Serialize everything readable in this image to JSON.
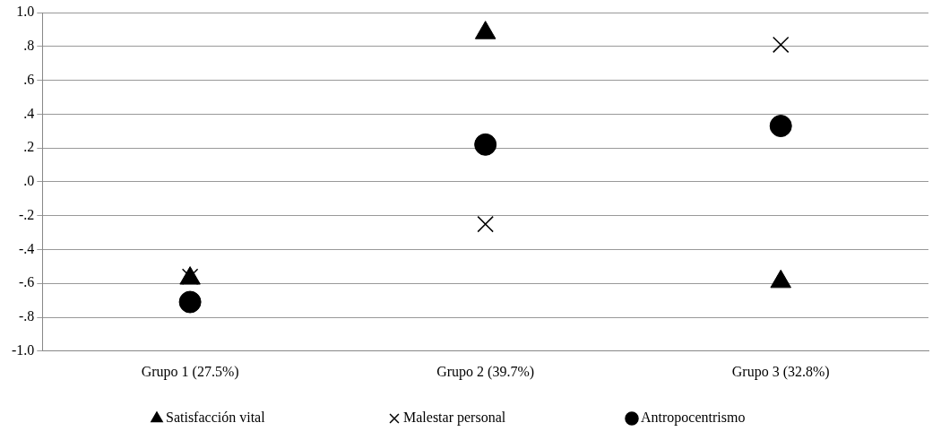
{
  "chart_data": {
    "type": "scatter",
    "categories": [
      "Grupo 1 (27.5%)",
      "Grupo 2 (39.7%)",
      "Grupo 3 (32.8%)"
    ],
    "series": [
      {
        "name": "Satisfacción vital",
        "color": "#000000",
        "marker": "triangle",
        "values": [
          -0.57,
          0.88,
          -0.59
        ]
      },
      {
        "name": "Malestar personal",
        "color": "#000000",
        "marker": "cross",
        "values": [
          -0.56,
          -0.25,
          0.81
        ]
      },
      {
        "name": "Antropocentrismo",
        "color": "#000000",
        "marker": "circle",
        "values": [
          -0.71,
          0.22,
          0.33
        ]
      }
    ],
    "ylim": [
      -1,
      1
    ],
    "yticks": [
      {
        "value": -1,
        "label": "-1.0"
      },
      {
        "value": -0.8,
        "label": "-.8"
      },
      {
        "value": -0.6,
        "label": "-.6"
      },
      {
        "value": -0.4,
        "label": "-.4"
      },
      {
        "value": -0.2,
        "label": "-.2"
      },
      {
        "value": 0,
        "label": ".0"
      },
      {
        "value": 0.2,
        "label": ".2"
      },
      {
        "value": 0.4,
        "label": ".4"
      },
      {
        "value": 0.6,
        "label": ".6"
      },
      {
        "value": 0.8,
        "label": ".8"
      },
      {
        "value": 1,
        "label": "1.0"
      }
    ],
    "grid": "y",
    "legend": "bottom"
  }
}
